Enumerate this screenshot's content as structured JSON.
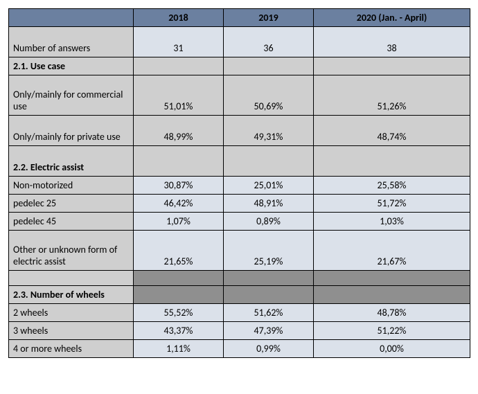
{
  "headers": {
    "col1": "2018",
    "col2": "2019",
    "col3": "2020 (Jan. - April)"
  },
  "rows": {
    "num_answers": {
      "label": "Number of answers",
      "v1": "31",
      "v2": "36",
      "v3": "38"
    },
    "s21": {
      "label": "2.1. Use case"
    },
    "commercial": {
      "label": "Only/mainly for commercial use",
      "v1": "51,01%",
      "v2": "50,69%",
      "v3": "51,26%"
    },
    "private": {
      "label": "Only/mainly for private use",
      "v1": "48,99%",
      "v2": "49,31%",
      "v3": "48,74%"
    },
    "s22": {
      "label": "2.2. Electric assist"
    },
    "nonmot": {
      "label": "Non-motorized",
      "v1": "30,87%",
      "v2": "25,01%",
      "v3": "25,58%"
    },
    "ped25": {
      "label": "pedelec 25",
      "v1": "46,42%",
      "v2": "48,91%",
      "v3": "51,72%"
    },
    "ped45": {
      "label": "pedelec 45",
      "v1": "1,07%",
      "v2": "0,89%",
      "v3": "1,03%"
    },
    "other": {
      "label": "Other or unknown form of electric assist",
      "v1": "21,65%",
      "v2": "25,19%",
      "v3": "21,67%"
    },
    "s23": {
      "label": "2.3. Number of wheels"
    },
    "w2": {
      "label": "2 wheels",
      "v1": "55,52%",
      "v2": "51,62%",
      "v3": "48,78%"
    },
    "w3": {
      "label": "3 wheels",
      "v1": "43,37%",
      "v2": "47,39%",
      "v3": "51,22%"
    },
    "w4": {
      "label": "4 or more wheels",
      "v1": "1,11%",
      "v2": "0,99%",
      "v3": "0,00%"
    }
  }
}
